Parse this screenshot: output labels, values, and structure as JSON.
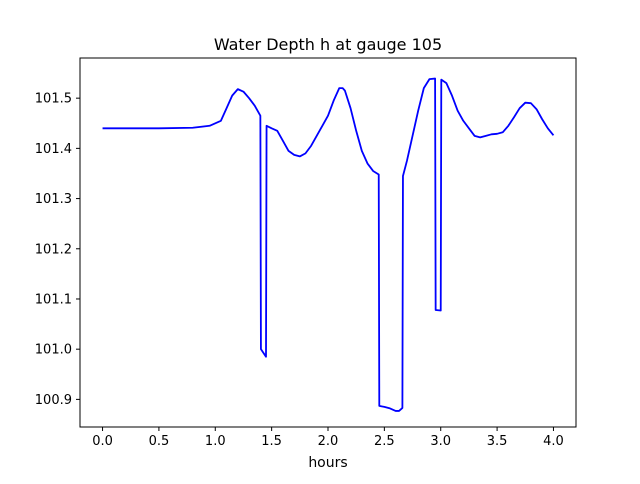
{
  "chart_data": {
    "type": "line",
    "title": "Water Depth h at gauge 105",
    "xlabel": "hours",
    "ylabel": "",
    "xlim": [
      -0.2,
      4.2
    ],
    "ylim": [
      100.845,
      101.58
    ],
    "x_ticks": [
      0.0,
      0.5,
      1.0,
      1.5,
      2.0,
      2.5,
      3.0,
      3.5,
      4.0
    ],
    "x_tick_labels": [
      "0.0",
      "0.5",
      "1.0",
      "1.5",
      "2.0",
      "2.5",
      "3.0",
      "3.5",
      "4.0"
    ],
    "y_ticks": [
      100.9,
      101.0,
      101.1,
      101.2,
      101.3,
      101.4,
      101.5
    ],
    "y_tick_labels": [
      "100.9",
      "101.0",
      "101.1",
      "101.2",
      "101.3",
      "101.4",
      "101.5"
    ],
    "grid": false,
    "legend": false,
    "series": [
      {
        "color": "#0000ff",
        "x": [
          0.0,
          0.5,
          0.8,
          0.95,
          1.05,
          1.1,
          1.15,
          1.2,
          1.25,
          1.3,
          1.35,
          1.4,
          1.405,
          1.45,
          1.455,
          1.5,
          1.55,
          1.6,
          1.65,
          1.7,
          1.75,
          1.8,
          1.85,
          1.9,
          1.95,
          2.0,
          2.05,
          2.1,
          2.13,
          2.15,
          2.2,
          2.25,
          2.3,
          2.35,
          2.4,
          2.45,
          2.455,
          2.5,
          2.55,
          2.6,
          2.63,
          2.66,
          2.665,
          2.7,
          2.75,
          2.8,
          2.85,
          2.9,
          2.95,
          2.955,
          3.0,
          3.005,
          3.05,
          3.1,
          3.15,
          3.2,
          3.25,
          3.3,
          3.35,
          3.4,
          3.45,
          3.5,
          3.55,
          3.6,
          3.65,
          3.7,
          3.75,
          3.8,
          3.85,
          3.9,
          3.95,
          4.0
        ],
        "y": [
          101.44,
          101.44,
          101.441,
          101.445,
          101.455,
          101.48,
          101.505,
          101.518,
          101.513,
          101.5,
          101.485,
          101.465,
          101.0,
          100.985,
          101.445,
          101.44,
          101.435,
          101.415,
          101.395,
          101.387,
          101.384,
          101.39,
          101.405,
          101.425,
          101.445,
          101.465,
          101.495,
          101.52,
          101.52,
          101.515,
          101.48,
          101.435,
          101.395,
          101.37,
          101.355,
          101.348,
          100.887,
          100.885,
          100.882,
          100.877,
          100.877,
          100.883,
          101.345,
          101.375,
          101.425,
          101.475,
          101.52,
          101.538,
          101.539,
          101.078,
          101.077,
          101.537,
          101.53,
          101.505,
          101.475,
          101.455,
          101.44,
          101.425,
          101.422,
          101.425,
          101.428,
          101.429,
          101.432,
          101.445,
          101.462,
          101.48,
          101.491,
          101.49,
          101.478,
          101.458,
          101.44,
          101.426
        ]
      }
    ]
  }
}
